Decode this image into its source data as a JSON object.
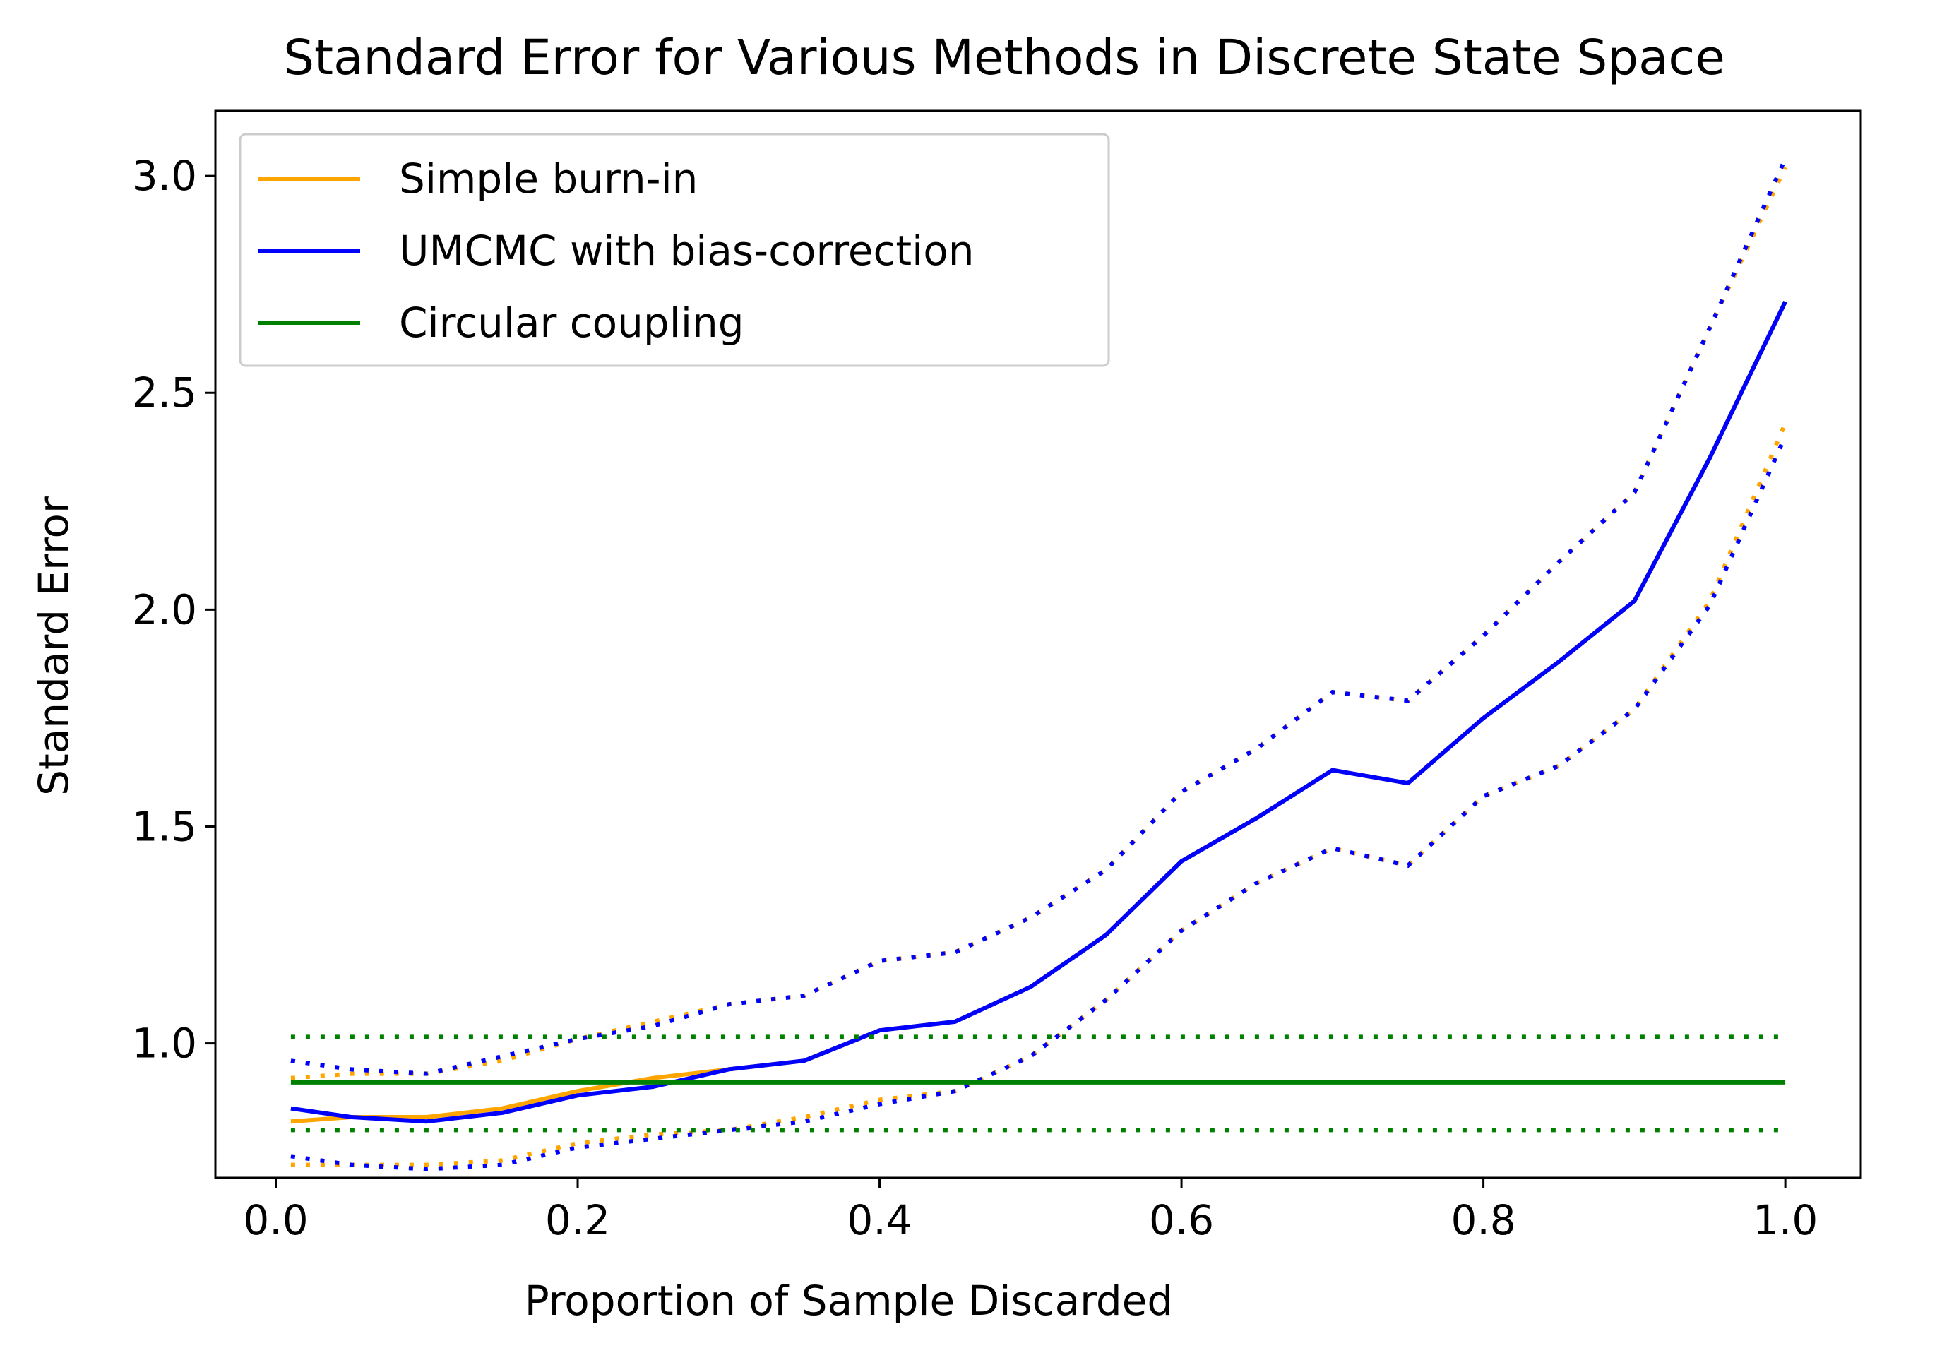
{
  "chart_data": {
    "type": "line",
    "title": "Standard Error for Various Methods in Discrete State Space",
    "xlabel": "Proportion of Sample Discarded",
    "ylabel": "Standard Error",
    "xlim": [
      -0.04,
      1.05
    ],
    "ylim": [
      0.69,
      3.15
    ],
    "xticks": [
      0.0,
      0.2,
      0.4,
      0.6,
      0.8,
      1.0
    ],
    "xtick_labels": [
      "0.0",
      "0.2",
      "0.4",
      "0.6",
      "0.8",
      "1.0"
    ],
    "yticks": [
      1.0,
      1.5,
      2.0,
      2.5,
      3.0
    ],
    "ytick_labels": [
      "1.0",
      "1.5",
      "2.0",
      "2.5",
      "3.0"
    ],
    "grid": false,
    "legend_position": "top-left",
    "series": [
      {
        "name": "Simple burn-in",
        "color": "#FFA500",
        "x": [
          0.01,
          0.05,
          0.1,
          0.15,
          0.2,
          0.25,
          0.3,
          0.35,
          0.4,
          0.45,
          0.5,
          0.55,
          0.6,
          0.65,
          0.7,
          0.75,
          0.8,
          0.85,
          0.9,
          0.95,
          1.0
        ],
        "values": [
          0.82,
          0.83,
          0.83,
          0.85,
          0.89,
          0.92,
          0.94,
          0.96,
          1.03,
          1.05,
          1.13,
          1.25,
          1.42,
          1.52,
          1.63,
          1.6,
          1.75,
          1.88,
          2.02,
          2.35,
          2.71
        ],
        "lower": [
          0.72,
          0.72,
          0.72,
          0.73,
          0.77,
          0.79,
          0.8,
          0.83,
          0.87,
          0.89,
          0.97,
          1.1,
          1.26,
          1.37,
          1.45,
          1.41,
          1.57,
          1.64,
          1.77,
          2.02,
          2.43
        ],
        "upper": [
          0.92,
          0.93,
          0.93,
          0.96,
          1.01,
          1.05,
          1.09,
          1.11,
          1.19,
          1.21,
          1.29,
          1.4,
          1.58,
          1.68,
          1.81,
          1.79,
          1.94,
          2.11,
          2.27,
          2.65,
          3.02
        ]
      },
      {
        "name": "UMCMC with bias-correction",
        "color": "#0000FF",
        "x": [
          0.01,
          0.05,
          0.1,
          0.15,
          0.2,
          0.25,
          0.3,
          0.35,
          0.4,
          0.45,
          0.5,
          0.55,
          0.6,
          0.65,
          0.7,
          0.75,
          0.8,
          0.85,
          0.9,
          0.95,
          1.0
        ],
        "values": [
          0.85,
          0.83,
          0.82,
          0.84,
          0.88,
          0.9,
          0.94,
          0.96,
          1.03,
          1.05,
          1.13,
          1.25,
          1.42,
          1.52,
          1.63,
          1.6,
          1.75,
          1.88,
          2.02,
          2.35,
          2.71
        ],
        "lower": [
          0.74,
          0.72,
          0.71,
          0.72,
          0.76,
          0.78,
          0.8,
          0.82,
          0.86,
          0.89,
          0.97,
          1.1,
          1.26,
          1.37,
          1.45,
          1.41,
          1.57,
          1.64,
          1.77,
          2.01,
          2.4
        ],
        "upper": [
          0.96,
          0.94,
          0.93,
          0.97,
          1.01,
          1.04,
          1.09,
          1.11,
          1.19,
          1.21,
          1.29,
          1.4,
          1.58,
          1.68,
          1.81,
          1.79,
          1.94,
          2.11,
          2.27,
          2.65,
          3.04
        ]
      },
      {
        "name": "Circular coupling",
        "color": "#008000",
        "x": [
          0.01,
          1.0
        ],
        "values": [
          0.91,
          0.91
        ],
        "lower": [
          0.8,
          0.8
        ],
        "upper": [
          1.015,
          1.015
        ]
      }
    ]
  }
}
